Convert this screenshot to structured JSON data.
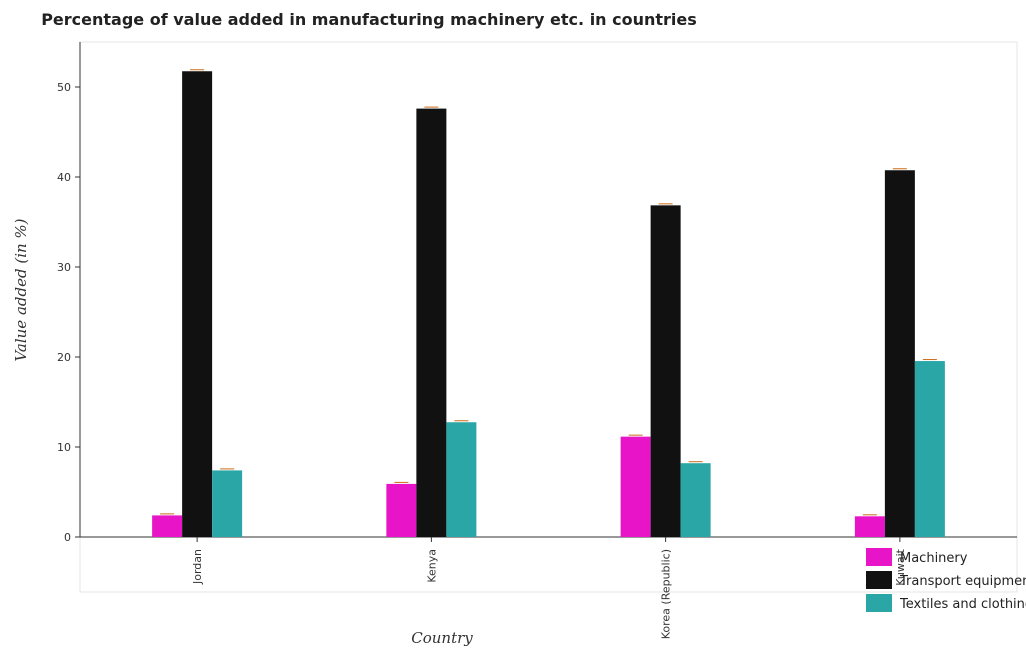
{
  "chart_data": {
    "type": "bar",
    "title": "Percentage of value added in manufacturing machinery etc. in countries",
    "xlabel": "Country",
    "ylabel": "Value added (in %)",
    "categories": [
      "Jordan",
      "Kenya",
      "Korea (Republic)",
      "Kuwait"
    ],
    "ylim": [
      0,
      55
    ],
    "yticks": [
      0,
      10,
      20,
      30,
      40,
      50
    ],
    "ytick_labels": [
      "0",
      "10",
      "20",
      "30",
      "40",
      "50"
    ],
    "grid": false,
    "legend_position": "bottom-right",
    "series": [
      {
        "name": "Machinery",
        "color": "#e815c8",
        "values": [
          2.4,
          5.9,
          11.15,
          2.3
        ]
      },
      {
        "name": "Transport equipments",
        "color": "#111111",
        "values": [
          51.75,
          47.6,
          36.85,
          40.75
        ]
      },
      {
        "name": "Textiles and clothing",
        "color": "#2aa6a6",
        "values": [
          7.4,
          12.75,
          8.2,
          19.55
        ]
      }
    ]
  }
}
